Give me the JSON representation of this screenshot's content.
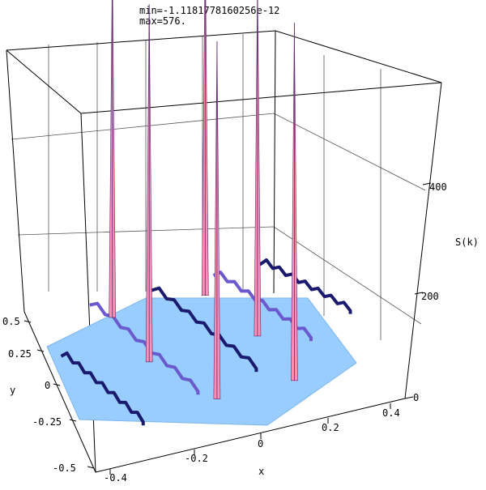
{
  "header": {
    "min_text": "min=-1.1181778160256e-12",
    "max_text": "max=576."
  },
  "colors": {
    "plane": "#99ccff",
    "plane_edge": "#6fa8e8",
    "ridge_dark": "#1a1a6e",
    "ridge_mid": "#6a5acd",
    "peak_pink": "#ff8fb3",
    "peak_dark": "#5a2a6e",
    "box_line": "#000000",
    "grid_line": "#555555"
  },
  "chart_data": {
    "type": "surface3d",
    "title": "",
    "xlabel": "x",
    "ylabel": "y",
    "zlabel": "S(k)",
    "xlim": [
      -0.5,
      0.5
    ],
    "ylim": [
      -0.5,
      0.5
    ],
    "zlim": [
      0,
      600
    ],
    "grid": true,
    "x_ticks": [
      "-0.4",
      "-0.2",
      "0",
      "0.2",
      "0.4"
    ],
    "y_ticks": [
      "0.5",
      "0.25",
      "0",
      "-0.25",
      "-0.5"
    ],
    "z_ticks": [
      "0",
      "200",
      "400"
    ],
    "z_min": -1.1181778160256e-12,
    "z_max": 576,
    "domain": "hexagon",
    "peaks": [
      {
        "x": -0.25,
        "y": 0.35,
        "z": 576
      },
      {
        "x": 0.05,
        "y": 0.35,
        "z": 576
      },
      {
        "x": -0.2,
        "y": 0.05,
        "z": 576
      },
      {
        "x": 0.15,
        "y": 0.05,
        "z": 576
      },
      {
        "x": -0.05,
        "y": -0.25,
        "z": 576
      },
      {
        "x": 0.2,
        "y": -0.25,
        "z": 576
      }
    ]
  }
}
